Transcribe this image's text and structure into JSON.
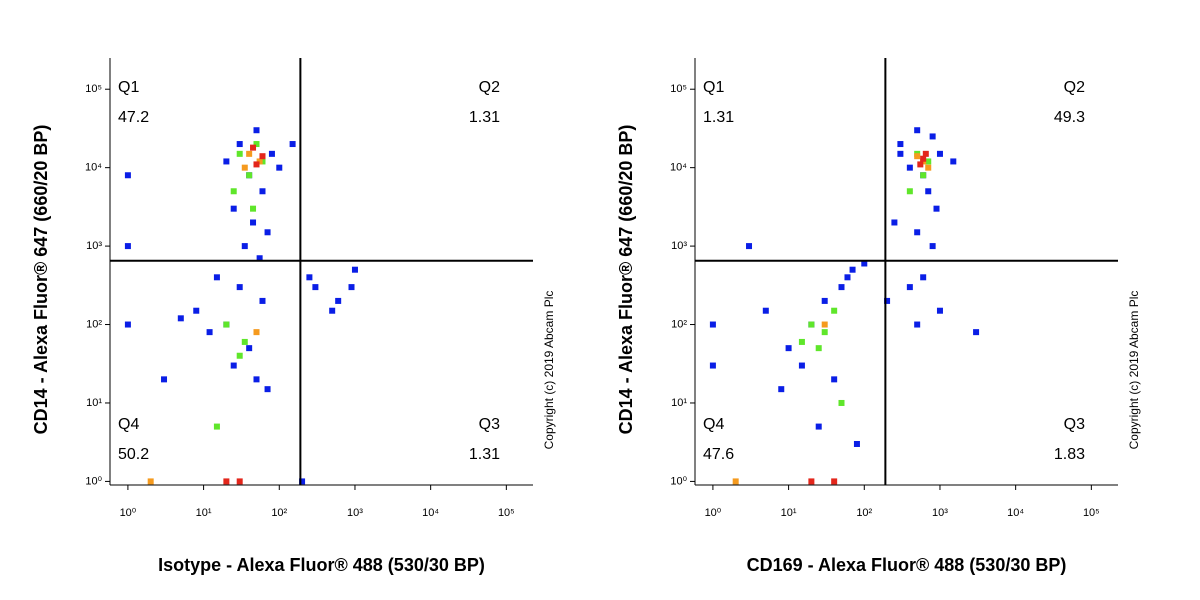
{
  "chart_data": [
    {
      "type": "scatter",
      "xlabel": "Isotype - Alexa Fluor® 488 (530/30 BP)",
      "ylabel": "CD14 - Alexa Fluor® 647 (660/20 BP)",
      "annotation": "Copyright (c) 2019 Abcam Plc",
      "xscale": "log",
      "yscale": "log",
      "xlim": [
        0.58,
        225000
      ],
      "ylim": [
        0.9,
        250000
      ],
      "xticks": [
        {
          "value": 1,
          "label": "10⁰"
        },
        {
          "value": 10,
          "label": "10¹"
        },
        {
          "value": 100,
          "label": "10²"
        },
        {
          "value": 1000,
          "label": "10³"
        },
        {
          "value": 10000,
          "label": "10⁴"
        },
        {
          "value": 100000,
          "label": "10⁵"
        }
      ],
      "yticks": [
        {
          "value": 1,
          "label": "10⁰"
        },
        {
          "value": 10,
          "label": "10¹"
        },
        {
          "value": 100,
          "label": "10²"
        },
        {
          "value": 1000,
          "label": "10³"
        },
        {
          "value": 10000,
          "label": "10⁴"
        },
        {
          "value": 100000,
          "label": "10⁵"
        }
      ],
      "gate": {
        "x": 190,
        "y": 650
      },
      "quadrants": [
        {
          "label": "Q1",
          "value": 47.2
        },
        {
          "label": "Q2",
          "value": 1.31
        },
        {
          "label": "Q3",
          "value": 1.31
        },
        {
          "label": "Q4",
          "value": 50.2
        }
      ],
      "series": [
        {
          "color": "#0a1ee6",
          "x": [
            30,
            50,
            80,
            20,
            40,
            60,
            100,
            25,
            45,
            70,
            35,
            55,
            15,
            30,
            60,
            20,
            40,
            12,
            25,
            50,
            70,
            8,
            300,
            600,
            1000,
            900,
            500,
            250,
            1,
            1,
            1,
            5,
            150,
            3,
            200
          ],
          "values": [
            20000,
            30000,
            15000,
            12000,
            8000,
            5000,
            10000,
            3000,
            2000,
            1500,
            1000,
            700,
            400,
            300,
            200,
            100,
            50,
            80,
            30,
            20,
            15,
            150,
            300,
            200,
            500,
            300,
            150,
            400,
            100,
            1000,
            8000,
            120,
            20000,
            20,
            1
          ]
        },
        {
          "color": "#5fe62a",
          "x": [
            30,
            50,
            40,
            60,
            25,
            45,
            20,
            35,
            30,
            15
          ],
          "values": [
            15000,
            20000,
            8000,
            12000,
            5000,
            3000,
            100,
            60,
            40,
            5
          ]
        },
        {
          "color": "#f59a1e",
          "x": [
            40,
            55,
            35,
            50,
            2
          ],
          "values": [
            15000,
            12000,
            10000,
            80,
            1
          ]
        },
        {
          "color": "#e3261b",
          "x": [
            45,
            60,
            50,
            20,
            30
          ],
          "values": [
            18000,
            14000,
            11000,
            1,
            1
          ]
        }
      ]
    },
    {
      "type": "scatter",
      "xlabel": "CD169 - Alexa Fluor® 488 (530/30 BP)",
      "ylabel": "CD14 - Alexa Fluor® 647 (660/20 BP)",
      "annotation": "Copyright (c) 2019 Abcam Plc",
      "xscale": "log",
      "yscale": "log",
      "xlim": [
        0.58,
        225000
      ],
      "ylim": [
        0.9,
        250000
      ],
      "xticks": [
        {
          "value": 1,
          "label": "10⁰"
        },
        {
          "value": 10,
          "label": "10¹"
        },
        {
          "value": 100,
          "label": "10²"
        },
        {
          "value": 1000,
          "label": "10³"
        },
        {
          "value": 10000,
          "label": "10⁴"
        },
        {
          "value": 100000,
          "label": "10⁵"
        }
      ],
      "yticks": [
        {
          "value": 1,
          "label": "10⁰"
        },
        {
          "value": 10,
          "label": "10¹"
        },
        {
          "value": 100,
          "label": "10²"
        },
        {
          "value": 1000,
          "label": "10³"
        },
        {
          "value": 10000,
          "label": "10⁴"
        },
        {
          "value": 100000,
          "label": "10⁵"
        }
      ],
      "gate": {
        "x": 190,
        "y": 650
      },
      "quadrants": [
        {
          "label": "Q1",
          "value": 1.31
        },
        {
          "label": "Q2",
          "value": 49.3
        },
        {
          "label": "Q3",
          "value": 1.83
        },
        {
          "label": "Q4",
          "value": 47.6
        }
      ],
      "series": [
        {
          "color": "#0a1ee6",
          "x": [
            300,
            500,
            800,
            1000,
            1500,
            400,
            600,
            700,
            900,
            250,
            500,
            800,
            600,
            400,
            200,
            500,
            1000,
            3000,
            10,
            20,
            30,
            50,
            70,
            100,
            5,
            15,
            40,
            60,
            8,
            25,
            1,
            1,
            3,
            300,
            80
          ],
          "values": [
            20000,
            30000,
            25000,
            15000,
            12000,
            10000,
            8000,
            5000,
            3000,
            2000,
            1500,
            1000,
            400,
            300,
            200,
            100,
            150,
            80,
            50,
            100,
            200,
            300,
            500,
            600,
            150,
            30,
            20,
            400,
            15,
            5,
            100,
            30,
            1000,
            15000,
            3
          ]
        },
        {
          "color": "#5fe62a",
          "x": [
            500,
            700,
            600,
            400,
            20,
            30,
            40,
            15,
            25,
            50
          ],
          "values": [
            15000,
            12000,
            8000,
            5000,
            100,
            80,
            150,
            60,
            50,
            10
          ]
        },
        {
          "color": "#f59a1e",
          "x": [
            500,
            700,
            600,
            30,
            2
          ],
          "values": [
            14000,
            10000,
            12000,
            100,
            1
          ]
        },
        {
          "color": "#e3261b",
          "x": [
            600,
            550,
            650,
            20,
            40
          ],
          "values": [
            13000,
            11000,
            15000,
            1,
            1
          ]
        }
      ]
    }
  ]
}
